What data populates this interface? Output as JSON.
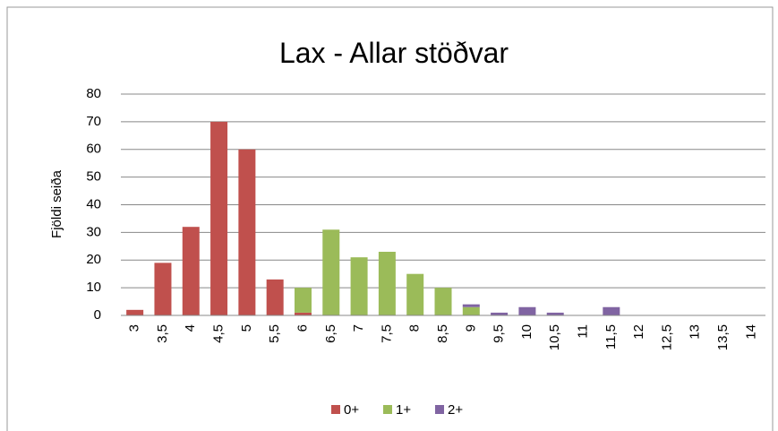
{
  "chart_data": {
    "type": "stacked_bar",
    "title": "Lax - Allar stöðvar",
    "y_label": "Fjöldi seiða",
    "categories": [
      "3",
      "3,5",
      "4",
      "4,5",
      "5",
      "5,5",
      "6",
      "6,5",
      "7",
      "7,5",
      "8",
      "8,5",
      "9",
      "9,5",
      "10",
      "10,5",
      "11",
      "11,5",
      "12",
      "12,5",
      "13",
      "13,5",
      "14"
    ],
    "series": [
      {
        "name": "0+",
        "color": "#c0504d",
        "values": [
          2,
          19,
          32,
          70,
          60,
          13,
          1,
          0,
          0,
          0,
          0,
          0,
          0,
          0,
          0,
          0,
          0,
          0,
          0,
          0,
          0,
          0,
          0
        ]
      },
      {
        "name": "1+",
        "color": "#9bbb59",
        "values": [
          0,
          0,
          0,
          0,
          0,
          0,
          9,
          31,
          21,
          23,
          15,
          10,
          3,
          0,
          0,
          0,
          0,
          0,
          0,
          0,
          0,
          0,
          0
        ]
      },
      {
        "name": "2+",
        "color": "#8064a2",
        "values": [
          0,
          0,
          0,
          0,
          0,
          0,
          0,
          0,
          0,
          0,
          0,
          0,
          1,
          1,
          3,
          1,
          0,
          3,
          0,
          0,
          0,
          0,
          0
        ]
      }
    ],
    "ylim": [
      0,
      80
    ],
    "yticks": [
      0,
      10,
      20,
      30,
      40,
      50,
      60,
      70,
      80
    ],
    "grid": true,
    "legend": "bottom"
  }
}
